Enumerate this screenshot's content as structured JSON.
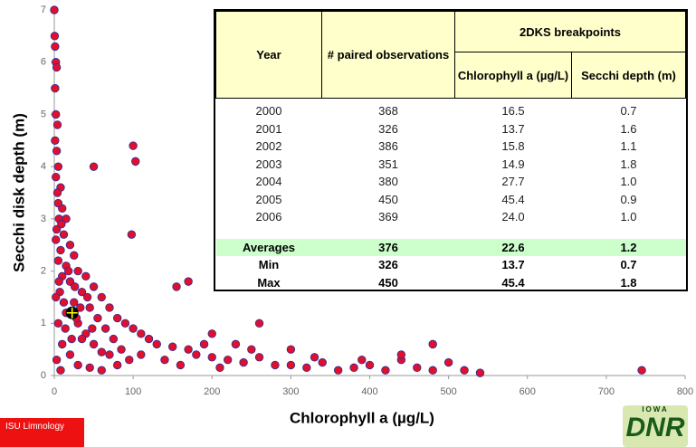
{
  "chart_data": {
    "type": "scatter",
    "xlabel": "Chlorophyll a (µg/L)",
    "ylabel": "Secchi disk depth (m)",
    "xlim": [
      0,
      800
    ],
    "xticks": [
      0,
      100,
      200,
      300,
      400,
      500,
      600,
      700,
      800
    ],
    "ylim": [
      0,
      7
    ],
    "yticks": [
      0,
      1,
      2,
      3,
      4,
      5,
      6,
      7
    ],
    "grid": false,
    "series": [
      {
        "color": "#e0102a",
        "x": [
          0,
          1,
          2,
          0.5,
          3,
          1,
          2,
          4,
          1,
          3,
          5,
          2,
          8,
          4,
          10,
          6,
          15,
          3,
          12,
          20,
          8,
          25,
          5,
          15,
          30,
          10,
          40,
          20,
          50,
          7,
          35,
          60,
          25,
          45,
          70,
          15,
          55,
          80,
          30,
          90,
          65,
          100,
          40,
          110,
          75,
          120,
          50,
          130,
          150,
          85,
          170,
          60,
          180,
          200,
          95,
          220,
          240,
          260,
          280,
          300,
          320,
          340,
          360,
          380,
          400,
          420,
          440,
          460,
          480,
          500,
          520,
          540,
          745,
          100,
          103,
          50,
          98,
          170,
          155,
          260,
          200,
          230,
          480,
          300,
          440,
          2,
          5,
          10,
          20,
          30,
          45,
          60,
          80,
          3,
          8,
          12,
          18,
          28,
          35,
          42,
          5,
          9,
          2,
          6,
          14,
          22,
          26,
          33,
          48,
          70,
          110,
          140,
          160,
          190,
          210,
          250,
          330,
          390
        ],
        "y": [
          7,
          6.3,
          6.0,
          6.5,
          5.9,
          5.5,
          5.0,
          4.8,
          4.5,
          4.3,
          4.0,
          3.8,
          3.6,
          3.5,
          3.2,
          3.0,
          3.0,
          2.8,
          2.7,
          2.5,
          2.4,
          2.3,
          2.2,
          2.1,
          2.0,
          1.9,
          1.9,
          1.8,
          1.7,
          1.6,
          1.6,
          1.5,
          1.4,
          1.3,
          1.3,
          1.2,
          1.1,
          1.1,
          1.0,
          1.0,
          0.9,
          0.9,
          0.8,
          0.8,
          0.7,
          0.7,
          0.6,
          0.6,
          0.55,
          0.5,
          0.5,
          0.45,
          0.4,
          0.35,
          0.3,
          0.3,
          0.25,
          0.35,
          0.2,
          0.2,
          0.15,
          0.25,
          0.1,
          0.15,
          0.2,
          0.1,
          0.3,
          0.15,
          0.1,
          0.25,
          0.1,
          0.05,
          0.1,
          4.4,
          4.1,
          4.0,
          2.7,
          1.8,
          1.7,
          1.0,
          0.8,
          0.6,
          0.6,
          0.5,
          0.4,
          1.5,
          1.0,
          0.6,
          0.4,
          0.2,
          0.15,
          0.1,
          0.2,
          0.3,
          0.1,
          1.4,
          2.0,
          1.1,
          0.7,
          1.5,
          3.3,
          2.9,
          2.6,
          1.8,
          0.9,
          0.7,
          1.7,
          1.3,
          0.9,
          0.4,
          0.4,
          0.3,
          0.2,
          0.6,
          0.15,
          0.5,
          0.35,
          0.3
        ]
      }
    ],
    "highlight": {
      "x": 22.6,
      "y": 1.2,
      "color": "#ffff00"
    }
  },
  "table": {
    "header": [
      "Year",
      "# paired observations",
      "2DKS breakpoints",
      "Chlorophyll a (µg/L)",
      "Secchi depth (m)"
    ],
    "rows": [
      [
        "2000",
        "368",
        "16.5",
        "0.7"
      ],
      [
        "2001",
        "326",
        "13.7",
        "1.6"
      ],
      [
        "2002",
        "386",
        "15.8",
        "1.1"
      ],
      [
        "2003",
        "351",
        "14.9",
        "1.8"
      ],
      [
        "2004",
        "380",
        "27.7",
        "1.0"
      ],
      [
        "2005",
        "450",
        "45.4",
        "0.9"
      ],
      [
        "2006",
        "369",
        "24.0",
        "1.0"
      ]
    ],
    "summary": [
      [
        "Averages",
        "376",
        "22.6",
        "1.2"
      ],
      [
        "Min",
        "326",
        "13.7",
        "0.7"
      ],
      [
        "Max",
        "450",
        "45.4",
        "1.8"
      ]
    ]
  },
  "footer": {
    "badge": "ISU Limnology",
    "logo_top": "IOWA",
    "logo": "DNR"
  }
}
